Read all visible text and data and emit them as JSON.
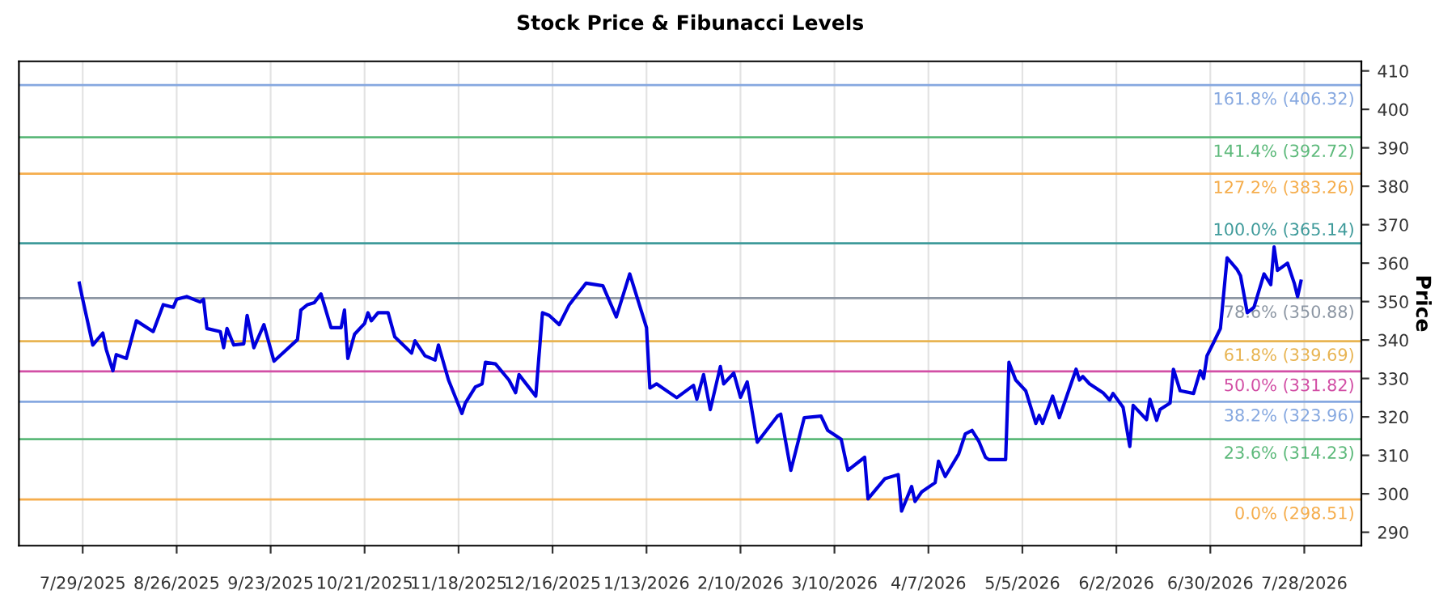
{
  "chart_data": {
    "type": "line",
    "title": "Stock Price & Fibunacci Levels",
    "ylabel": "Price",
    "x": [
      "2025-07-28",
      "2025-07-29",
      "2025-08-01",
      "2025-08-04",
      "2025-08-05",
      "2025-08-07",
      "2025-08-08",
      "2025-08-11",
      "2025-08-14",
      "2025-08-19",
      "2025-08-22",
      "2025-08-25",
      "2025-08-26",
      "2025-08-29",
      "2025-09-02",
      "2025-09-03",
      "2025-09-04",
      "2025-09-08",
      "2025-09-09",
      "2025-09-10",
      "2025-09-12",
      "2025-09-15",
      "2025-09-16",
      "2025-09-18",
      "2025-09-21",
      "2025-09-24",
      "2025-10-01",
      "2025-10-02",
      "2025-10-04",
      "2025-10-06",
      "2025-10-08",
      "2025-10-11",
      "2025-10-14",
      "2025-10-15",
      "2025-10-16",
      "2025-10-18",
      "2025-10-21",
      "2025-10-22",
      "2025-10-23",
      "2025-10-25",
      "2025-10-28",
      "2025-10-30",
      "2025-11-04",
      "2025-11-05",
      "2025-11-08",
      "2025-11-11",
      "2025-11-12",
      "2025-11-15",
      "2025-11-19",
      "2025-11-20",
      "2025-11-23",
      "2025-11-25",
      "2025-11-26",
      "2025-11-29",
      "2025-12-03",
      "2025-12-05",
      "2025-12-06",
      "2025-12-11",
      "2025-12-13",
      "2025-12-15",
      "2025-12-18",
      "2025-12-21",
      "2025-12-26",
      "2025-12-31",
      "2026-01-04",
      "2026-01-08",
      "2026-01-13",
      "2026-01-14",
      "2026-01-16",
      "2026-01-22",
      "2026-01-27",
      "2026-01-28",
      "2026-01-30",
      "2026-02-01",
      "2026-02-04",
      "2026-02-05",
      "2026-02-08",
      "2026-02-10",
      "2026-02-12",
      "2026-02-15",
      "2026-02-21",
      "2026-02-22",
      "2026-02-25",
      "2026-03-01",
      "2026-03-06",
      "2026-03-08",
      "2026-03-12",
      "2026-03-14",
      "2026-03-19",
      "2026-03-20",
      "2026-03-25",
      "2026-03-29",
      "2026-03-30",
      "2026-04-02",
      "2026-04-03",
      "2026-04-05",
      "2026-04-09",
      "2026-04-10",
      "2026-04-12",
      "2026-04-16",
      "2026-04-18",
      "2026-04-20",
      "2026-04-22",
      "2026-04-24",
      "2026-04-25",
      "2026-04-30",
      "2026-05-01",
      "2026-05-03",
      "2026-05-06",
      "2026-05-09",
      "2026-05-10",
      "2026-05-11",
      "2026-05-14",
      "2026-05-16",
      "2026-05-21",
      "2026-05-22",
      "2026-05-23",
      "2026-05-25",
      "2026-05-29",
      "2026-05-31",
      "2026-06-01",
      "2026-06-04",
      "2026-06-06",
      "2026-06-07",
      "2026-06-11",
      "2026-06-12",
      "2026-06-14",
      "2026-06-15",
      "2026-06-18",
      "2026-06-19",
      "2026-06-21",
      "2026-06-25",
      "2026-06-27",
      "2026-06-28",
      "2026-06-29",
      "2026-07-01",
      "2026-07-03",
      "2026-07-05",
      "2026-07-08",
      "2026-07-09",
      "2026-07-11",
      "2026-07-13",
      "2026-07-16",
      "2026-07-18",
      "2026-07-19",
      "2026-07-20",
      "2026-07-23",
      "2026-07-25",
      "2026-07-26",
      "2026-07-27"
    ],
    "series": [
      {
        "color": "#0000dd",
        "values": [
          354.8,
          350.6,
          338.7,
          341.8,
          337.6,
          332.0,
          336.2,
          335.2,
          345.0,
          342.2,
          349.2,
          348.5,
          350.6,
          351.3,
          349.9,
          350.6,
          343.0,
          342.2,
          338.0,
          343.0,
          338.7,
          339.0,
          346.4,
          338.0,
          344.0,
          334.5,
          340.1,
          347.8,
          349.2,
          349.7,
          352.0,
          343.2,
          343.2,
          347.8,
          335.2,
          341.5,
          344.3,
          347.1,
          345.0,
          347.1,
          347.1,
          340.8,
          336.6,
          339.8,
          335.9,
          334.8,
          338.7,
          329.6,
          320.9,
          323.6,
          327.8,
          328.6,
          334.2,
          333.8,
          329.6,
          326.3,
          331.0,
          325.4,
          347.1,
          346.4,
          344.0,
          349.2,
          354.8,
          354.1,
          346.0,
          357.2,
          343.2,
          327.5,
          328.6,
          325.0,
          328.2,
          324.6,
          331.0,
          321.9,
          333.1,
          328.6,
          331.4,
          325.1,
          329.1,
          313.4,
          320.2,
          320.7,
          306.1,
          319.8,
          320.2,
          316.5,
          314.2,
          306.1,
          309.5,
          298.7,
          303.9,
          305.0,
          295.5,
          301.9,
          298.0,
          300.5,
          302.9,
          308.5,
          304.5,
          310.3,
          315.6,
          316.5,
          313.7,
          309.5,
          308.9,
          308.9,
          334.2,
          329.6,
          326.8,
          318.3,
          320.4,
          318.3,
          325.4,
          319.8,
          332.4,
          329.6,
          330.5,
          328.6,
          326.3,
          324.4,
          326.1,
          322.5,
          312.3,
          323.0,
          319.3,
          324.6,
          319.1,
          321.9,
          323.6,
          332.4,
          326.8,
          326.1,
          332.0,
          330.0,
          335.9,
          339.4,
          343.0,
          361.4,
          358.3,
          356.7,
          347.1,
          348.5,
          357.2,
          354.4,
          364.2,
          358.1,
          360.0,
          354.8,
          351.3,
          355.3
        ]
      }
    ],
    "xlim": [
      "2025-07-10",
      "2026-08-14"
    ],
    "xticks": [
      {
        "value": "2025-07-29",
        "label": "7/29/2025"
      },
      {
        "value": "2025-08-26",
        "label": "8/26/2025"
      },
      {
        "value": "2025-09-23",
        "label": "9/23/2025"
      },
      {
        "value": "2025-10-21",
        "label": "10/21/2025"
      },
      {
        "value": "2025-11-18",
        "label": "11/18/2025"
      },
      {
        "value": "2025-12-16",
        "label": "12/16/2025"
      },
      {
        "value": "2026-01-13",
        "label": "1/13/2026"
      },
      {
        "value": "2026-02-10",
        "label": "2/10/2026"
      },
      {
        "value": "2026-03-10",
        "label": "3/10/2026"
      },
      {
        "value": "2026-04-07",
        "label": "4/7/2026"
      },
      {
        "value": "2026-05-05",
        "label": "5/5/2026"
      },
      {
        "value": "2026-06-02",
        "label": "6/2/2026"
      },
      {
        "value": "2026-06-30",
        "label": "6/30/2026"
      },
      {
        "value": "2026-07-28",
        "label": "7/28/2026"
      }
    ],
    "ylim": [
      286.5,
      412.5
    ],
    "yticks": [
      290,
      300,
      310,
      320,
      330,
      340,
      350,
      360,
      370,
      380,
      390,
      400,
      410
    ],
    "grid": "x",
    "line_style": "solid",
    "marker": "none",
    "ref_lines": [
      {
        "axis": "y",
        "value": 298.51,
        "label": "0.0% (298.51)",
        "color": "#f5ad4c"
      },
      {
        "axis": "y",
        "value": 314.23,
        "label": "23.6% (314.23)",
        "color": "#5cb97a"
      },
      {
        "axis": "y",
        "value": 323.96,
        "label": "38.2% (323.96)",
        "color": "#86a8e0"
      },
      {
        "axis": "y",
        "value": 331.82,
        "label": "50.0% (331.82)",
        "color": "#d24fa5"
      },
      {
        "axis": "y",
        "value": 339.69,
        "label": "61.8% (339.69)",
        "color": "#e8b452"
      },
      {
        "axis": "y",
        "value": 350.88,
        "label": "78.6% (350.88)",
        "color": "#8c96a3"
      },
      {
        "axis": "y",
        "value": 365.14,
        "label": "100.0% (365.14)",
        "color": "#3e9a9a"
      },
      {
        "axis": "y",
        "value": 383.26,
        "label": "127.2% (383.26)",
        "color": "#f5ad4c"
      },
      {
        "axis": "y",
        "value": 392.72,
        "label": "141.4% (392.72)",
        "color": "#5cb97a"
      },
      {
        "axis": "y",
        "value": 406.32,
        "label": "161.8% (406.32)",
        "color": "#86a8e0"
      }
    ]
  }
}
